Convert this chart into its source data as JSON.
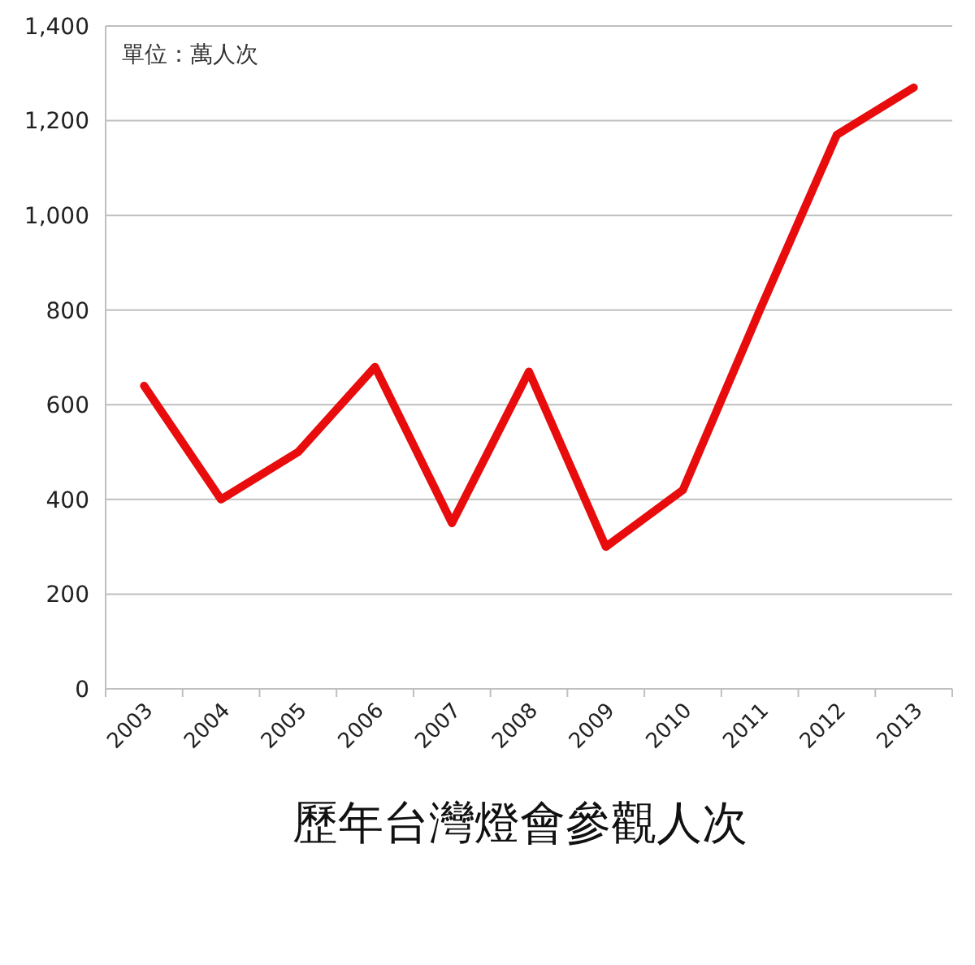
{
  "chart_data": {
    "type": "line",
    "title": "歷年台灣燈會參觀人次",
    "annotations": [
      "單位：萬人次"
    ],
    "categories": [
      "2003",
      "2004",
      "2005",
      "2006",
      "2007",
      "2008",
      "2009",
      "2010",
      "2011",
      "2012",
      "2013"
    ],
    "series": [
      {
        "color": "#e80c0c",
        "values": [
          640,
          400,
          500,
          680,
          350,
          670,
          300,
          420,
          800,
          1170,
          1270
        ]
      }
    ],
    "ylim": [
      0,
      1400
    ],
    "yticks": [
      {
        "value": 0,
        "label": "0"
      },
      {
        "value": 200,
        "label": "200"
      },
      {
        "value": 400,
        "label": "400"
      },
      {
        "value": 600,
        "label": "600"
      },
      {
        "value": 800,
        "label": "800"
      },
      {
        "value": 1000,
        "label": "1,000"
      },
      {
        "value": 1200,
        "label": "1,200"
      },
      {
        "value": 1400,
        "label": "1,400"
      }
    ],
    "grid": "y",
    "marker": "none",
    "line_style": "solid"
  }
}
